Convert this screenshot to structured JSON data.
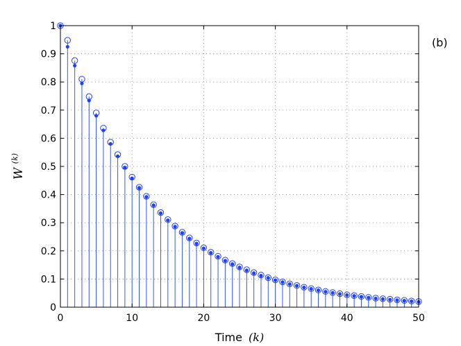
{
  "chart_data": {
    "type": "stem",
    "panel_label": "(b)",
    "xlabel_text": "Time",
    "xlabel_var": "(k)",
    "ylabel_main": "W",
    "ylabel_sup": "(k)",
    "xlim": [
      0,
      50
    ],
    "ylim": [
      0,
      1
    ],
    "x_ticks": [
      "0",
      "10",
      "20",
      "30",
      "40",
      "50"
    ],
    "y_ticks": [
      "0",
      "0.1",
      "0.2",
      "0.3",
      "0.4",
      "0.5",
      "0.6",
      "0.7",
      "0.8",
      "0.9",
      "1"
    ],
    "grid": true,
    "colors": {
      "series": "#1f3fff",
      "stem": "#3355ff"
    },
    "x": [
      0,
      1,
      2,
      3,
      4,
      5,
      6,
      7,
      8,
      9,
      10,
      11,
      12,
      13,
      14,
      15,
      16,
      17,
      18,
      19,
      20,
      21,
      22,
      23,
      24,
      25,
      26,
      27,
      28,
      29,
      30,
      31,
      32,
      33,
      34,
      35,
      36,
      37,
      38,
      39,
      40,
      41,
      42,
      43,
      44,
      45,
      46,
      47,
      48,
      49,
      50
    ],
    "series": [
      {
        "marker": "open-circle",
        "values": [
          1.0,
          0.948,
          0.876,
          0.81,
          0.748,
          0.69,
          0.636,
          0.586,
          0.542,
          0.5,
          0.462,
          0.426,
          0.394,
          0.364,
          0.336,
          0.311,
          0.288,
          0.266,
          0.246,
          0.228,
          0.211,
          0.195,
          0.181,
          0.167,
          0.155,
          0.143,
          0.133,
          0.123,
          0.114,
          0.105,
          0.097,
          0.09,
          0.083,
          0.077,
          0.071,
          0.066,
          0.061,
          0.056,
          0.052,
          0.048,
          0.044,
          0.041,
          0.038,
          0.035,
          0.032,
          0.03,
          0.028,
          0.026,
          0.024,
          0.022,
          0.02
        ]
      },
      {
        "marker": "filled-dot",
        "values": [
          1.0,
          0.925,
          0.858,
          0.795,
          0.734,
          0.68,
          0.628,
          0.58,
          0.536,
          0.496,
          0.458,
          0.424,
          0.392,
          0.362,
          0.334,
          0.309,
          0.286,
          0.264,
          0.244,
          0.226,
          0.209,
          0.193,
          0.179,
          0.165,
          0.153,
          0.141,
          0.131,
          0.121,
          0.112,
          0.104,
          0.096,
          0.089,
          0.082,
          0.076,
          0.07,
          0.065,
          0.06,
          0.055,
          0.051,
          0.047,
          0.043,
          0.04,
          0.037,
          0.034,
          0.031,
          0.029,
          0.027,
          0.025,
          0.023,
          0.021,
          0.019
        ]
      }
    ]
  }
}
